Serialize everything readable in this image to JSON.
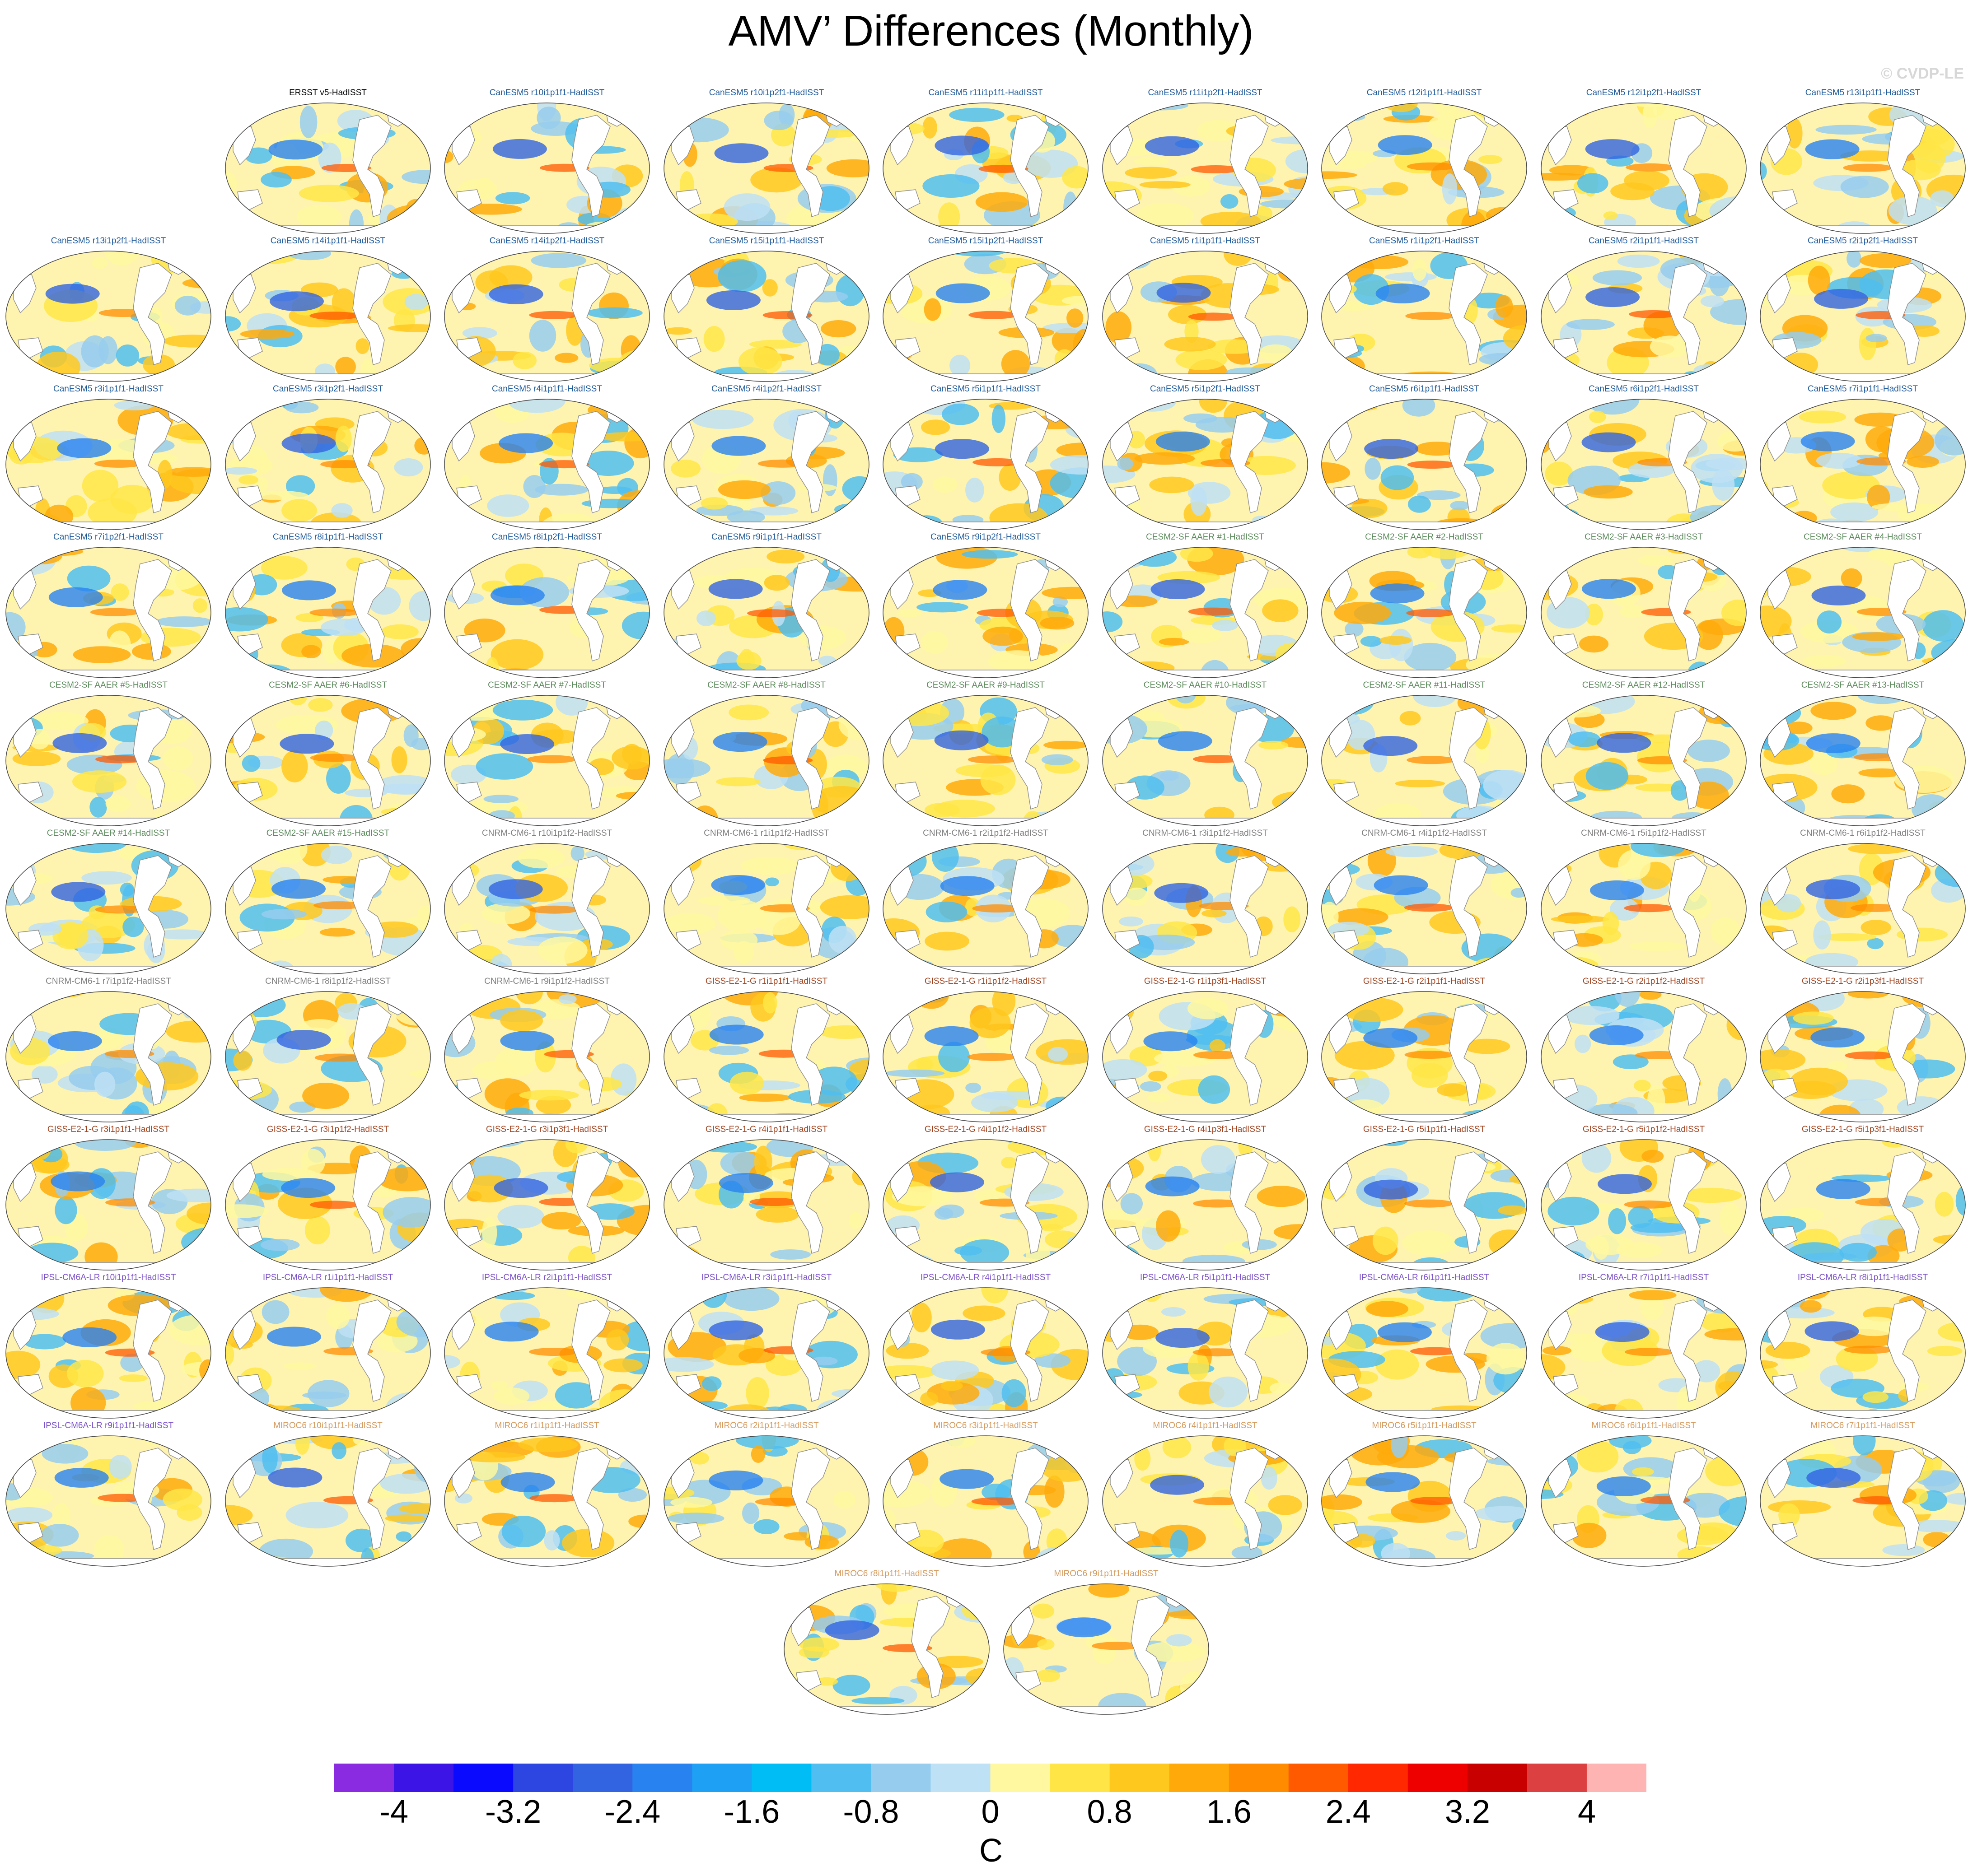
{
  "title": "AMV’ Differences (Monthly)",
  "watermark": "© CVDP-LE",
  "group_colors": {
    "obs": "#000000",
    "CanESM5": "#1f5a99",
    "CESM2-SF AAER": "#5c8a5c",
    "CNRM-CM6-1": "#808080",
    "GISS-E2-1-G": "#a0421e",
    "IPSL-CM6A-LR": "#7b52c8",
    "MIROC6": "#d49a5e"
  },
  "panels": [
    {
      "label": "ERSST v5-HadISST",
      "group": "obs"
    },
    {
      "label": "CanESM5 r10i1p1f1-HadISST",
      "group": "CanESM5"
    },
    {
      "label": "CanESM5 r10i1p2f1-HadISST",
      "group": "CanESM5"
    },
    {
      "label": "CanESM5 r11i1p1f1-HadISST",
      "group": "CanESM5"
    },
    {
      "label": "CanESM5 r11i1p2f1-HadISST",
      "group": "CanESM5"
    },
    {
      "label": "CanESM5 r12i1p1f1-HadISST",
      "group": "CanESM5"
    },
    {
      "label": "CanESM5 r12i1p2f1-HadISST",
      "group": "CanESM5"
    },
    {
      "label": "CanESM5 r13i1p1f1-HadISST",
      "group": "CanESM5"
    },
    {
      "label": "CanESM5 r13i1p2f1-HadISST",
      "group": "CanESM5"
    },
    {
      "label": "CanESM5 r14i1p1f1-HadISST",
      "group": "CanESM5"
    },
    {
      "label": "CanESM5 r14i1p2f1-HadISST",
      "group": "CanESM5"
    },
    {
      "label": "CanESM5 r15i1p1f1-HadISST",
      "group": "CanESM5"
    },
    {
      "label": "CanESM5 r15i1p2f1-HadISST",
      "group": "CanESM5"
    },
    {
      "label": "CanESM5 r1i1p1f1-HadISST",
      "group": "CanESM5"
    },
    {
      "label": "CanESM5 r1i1p2f1-HadISST",
      "group": "CanESM5"
    },
    {
      "label": "CanESM5 r2i1p1f1-HadISST",
      "group": "CanESM5"
    },
    {
      "label": "CanESM5 r2i1p2f1-HadISST",
      "group": "CanESM5"
    },
    {
      "label": "CanESM5 r3i1p1f1-HadISST",
      "group": "CanESM5"
    },
    {
      "label": "CanESM5 r3i1p2f1-HadISST",
      "group": "CanESM5"
    },
    {
      "label": "CanESM5 r4i1p1f1-HadISST",
      "group": "CanESM5"
    },
    {
      "label": "CanESM5 r4i1p2f1-HadISST",
      "group": "CanESM5"
    },
    {
      "label": "CanESM5 r5i1p1f1-HadISST",
      "group": "CanESM5"
    },
    {
      "label": "CanESM5 r5i1p2f1-HadISST",
      "group": "CanESM5"
    },
    {
      "label": "CanESM5 r6i1p1f1-HadISST",
      "group": "CanESM5"
    },
    {
      "label": "CanESM5 r6i1p2f1-HadISST",
      "group": "CanESM5"
    },
    {
      "label": "CanESM5 r7i1p1f1-HadISST",
      "group": "CanESM5"
    },
    {
      "label": "CanESM5 r7i1p2f1-HadISST",
      "group": "CanESM5"
    },
    {
      "label": "CanESM5 r8i1p1f1-HadISST",
      "group": "CanESM5"
    },
    {
      "label": "CanESM5 r8i1p2f1-HadISST",
      "group": "CanESM5"
    },
    {
      "label": "CanESM5 r9i1p1f1-HadISST",
      "group": "CanESM5"
    },
    {
      "label": "CanESM5 r9i1p2f1-HadISST",
      "group": "CanESM5"
    },
    {
      "label": "CESM2-SF AAER #1-HadISST",
      "group": "CESM2-SF AAER"
    },
    {
      "label": "CESM2-SF AAER #2-HadISST",
      "group": "CESM2-SF AAER"
    },
    {
      "label": "CESM2-SF AAER #3-HadISST",
      "group": "CESM2-SF AAER"
    },
    {
      "label": "CESM2-SF AAER #4-HadISST",
      "group": "CESM2-SF AAER"
    },
    {
      "label": "CESM2-SF AAER #5-HadISST",
      "group": "CESM2-SF AAER"
    },
    {
      "label": "CESM2-SF AAER #6-HadISST",
      "group": "CESM2-SF AAER"
    },
    {
      "label": "CESM2-SF AAER #7-HadISST",
      "group": "CESM2-SF AAER"
    },
    {
      "label": "CESM2-SF AAER #8-HadISST",
      "group": "CESM2-SF AAER"
    },
    {
      "label": "CESM2-SF AAER #9-HadISST",
      "group": "CESM2-SF AAER"
    },
    {
      "label": "CESM2-SF AAER #10-HadISST",
      "group": "CESM2-SF AAER"
    },
    {
      "label": "CESM2-SF AAER #11-HadISST",
      "group": "CESM2-SF AAER"
    },
    {
      "label": "CESM2-SF AAER #12-HadISST",
      "group": "CESM2-SF AAER"
    },
    {
      "label": "CESM2-SF AAER #13-HadISST",
      "group": "CESM2-SF AAER"
    },
    {
      "label": "CESM2-SF AAER #14-HadISST",
      "group": "CESM2-SF AAER"
    },
    {
      "label": "CESM2-SF AAER #15-HadISST",
      "group": "CESM2-SF AAER"
    },
    {
      "label": "CNRM-CM6-1 r10i1p1f2-HadISST",
      "group": "CNRM-CM6-1"
    },
    {
      "label": "CNRM-CM6-1 r1i1p1f2-HadISST",
      "group": "CNRM-CM6-1"
    },
    {
      "label": "CNRM-CM6-1 r2i1p1f2-HadISST",
      "group": "CNRM-CM6-1"
    },
    {
      "label": "CNRM-CM6-1 r3i1p1f2-HadISST",
      "group": "CNRM-CM6-1"
    },
    {
      "label": "CNRM-CM6-1 r4i1p1f2-HadISST",
      "group": "CNRM-CM6-1"
    },
    {
      "label": "CNRM-CM6-1 r5i1p1f2-HadISST",
      "group": "CNRM-CM6-1"
    },
    {
      "label": "CNRM-CM6-1 r6i1p1f2-HadISST",
      "group": "CNRM-CM6-1"
    },
    {
      "label": "CNRM-CM6-1 r7i1p1f2-HadISST",
      "group": "CNRM-CM6-1"
    },
    {
      "label": "CNRM-CM6-1 r8i1p1f2-HadISST",
      "group": "CNRM-CM6-1"
    },
    {
      "label": "CNRM-CM6-1 r9i1p1f2-HadISST",
      "group": "CNRM-CM6-1"
    },
    {
      "label": "GISS-E2-1-G r1i1p1f1-HadISST",
      "group": "GISS-E2-1-G"
    },
    {
      "label": "GISS-E2-1-G r1i1p1f2-HadISST",
      "group": "GISS-E2-1-G"
    },
    {
      "label": "GISS-E2-1-G r1i1p3f1-HadISST",
      "group": "GISS-E2-1-G"
    },
    {
      "label": "GISS-E2-1-G r2i1p1f1-HadISST",
      "group": "GISS-E2-1-G"
    },
    {
      "label": "GISS-E2-1-G r2i1p1f2-HadISST",
      "group": "GISS-E2-1-G"
    },
    {
      "label": "GISS-E2-1-G r2i1p3f1-HadISST",
      "group": "GISS-E2-1-G"
    },
    {
      "label": "GISS-E2-1-G r3i1p1f1-HadISST",
      "group": "GISS-E2-1-G"
    },
    {
      "label": "GISS-E2-1-G r3i1p1f2-HadISST",
      "group": "GISS-E2-1-G"
    },
    {
      "label": "GISS-E2-1-G r3i1p3f1-HadISST",
      "group": "GISS-E2-1-G"
    },
    {
      "label": "GISS-E2-1-G r4i1p1f1-HadISST",
      "group": "GISS-E2-1-G"
    },
    {
      "label": "GISS-E2-1-G r4i1p1f2-HadISST",
      "group": "GISS-E2-1-G"
    },
    {
      "label": "GISS-E2-1-G r4i1p3f1-HadISST",
      "group": "GISS-E2-1-G"
    },
    {
      "label": "GISS-E2-1-G r5i1p1f1-HadISST",
      "group": "GISS-E2-1-G"
    },
    {
      "label": "GISS-E2-1-G r5i1p1f2-HadISST",
      "group": "GISS-E2-1-G"
    },
    {
      "label": "GISS-E2-1-G r5i1p3f1-HadISST",
      "group": "GISS-E2-1-G"
    },
    {
      "label": "IPSL-CM6A-LR r10i1p1f1-HadISST",
      "group": "IPSL-CM6A-LR"
    },
    {
      "label": "IPSL-CM6A-LR r1i1p1f1-HadISST",
      "group": "IPSL-CM6A-LR"
    },
    {
      "label": "IPSL-CM6A-LR r2i1p1f1-HadISST",
      "group": "IPSL-CM6A-LR"
    },
    {
      "label": "IPSL-CM6A-LR r3i1p1f1-HadISST",
      "group": "IPSL-CM6A-LR"
    },
    {
      "label": "IPSL-CM6A-LR r4i1p1f1-HadISST",
      "group": "IPSL-CM6A-LR"
    },
    {
      "label": "IPSL-CM6A-LR r5i1p1f1-HadISST",
      "group": "IPSL-CM6A-LR"
    },
    {
      "label": "IPSL-CM6A-LR r6i1p1f1-HadISST",
      "group": "IPSL-CM6A-LR"
    },
    {
      "label": "IPSL-CM6A-LR r7i1p1f1-HadISST",
      "group": "IPSL-CM6A-LR"
    },
    {
      "label": "IPSL-CM6A-LR r8i1p1f1-HadISST",
      "group": "IPSL-CM6A-LR"
    },
    {
      "label": "IPSL-CM6A-LR r9i1p1f1-HadISST",
      "group": "IPSL-CM6A-LR"
    },
    {
      "label": "MIROC6 r10i1p1f1-HadISST",
      "group": "MIROC6"
    },
    {
      "label": "MIROC6 r1i1p1f1-HadISST",
      "group": "MIROC6"
    },
    {
      "label": "MIROC6 r2i1p1f1-HadISST",
      "group": "MIROC6"
    },
    {
      "label": "MIROC6 r3i1p1f1-HadISST",
      "group": "MIROC6"
    },
    {
      "label": "MIROC6 r4i1p1f1-HadISST",
      "group": "MIROC6"
    },
    {
      "label": "MIROC6 r5i1p1f1-HadISST",
      "group": "MIROC6"
    },
    {
      "label": "MIROC6 r6i1p1f1-HadISST",
      "group": "MIROC6"
    },
    {
      "label": "MIROC6 r7i1p1f1-HadISST",
      "group": "MIROC6"
    },
    {
      "label": "MIROC6 r8i1p1f1-HadISST",
      "group": "MIROC6"
    },
    {
      "label": "MIROC6 r9i1p1f1-HadISST",
      "group": "MIROC6"
    }
  ],
  "colorbar": {
    "colors": [
      "#8a2be2",
      "#3c14e6",
      "#0a0aff",
      "#2d46e1",
      "#3264e1",
      "#2882f0",
      "#1ea0f5",
      "#00bef5",
      "#50bef0",
      "#96cdee",
      "#bee1f5",
      "#fff8a0",
      "#ffe646",
      "#ffc81e",
      "#ffaa0a",
      "#ff8c00",
      "#ff5a00",
      "#ff2800",
      "#ee0000",
      "#c80000",
      "#dc4040",
      "#ffb4b4"
    ],
    "tick_labels": [
      "-4",
      "-3.2",
      "-2.4",
      "-1.6",
      "-0.8",
      "0",
      "0.8",
      "1.6",
      "2.4",
      "3.2",
      "4"
    ],
    "tick_values": [
      -4,
      -3.2,
      -2.4,
      -1.6,
      -0.8,
      0,
      0.8,
      1.6,
      2.4,
      3.2,
      4
    ],
    "min": -4.4,
    "max": 4.4,
    "units": "C"
  }
}
